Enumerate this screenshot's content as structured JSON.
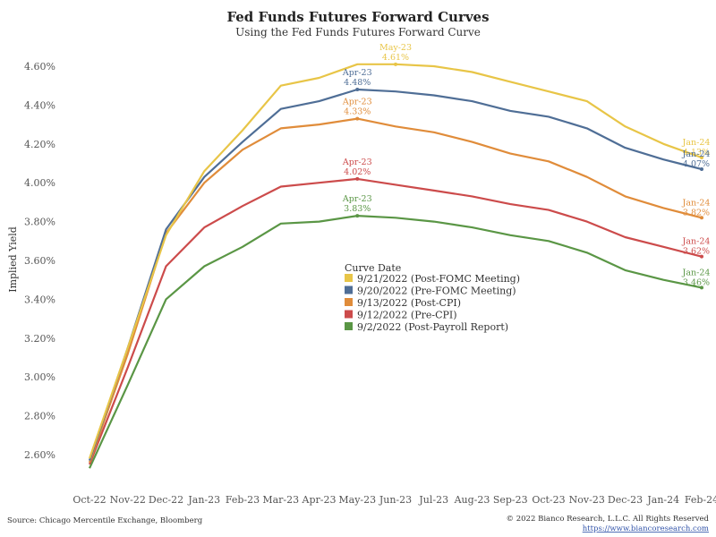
{
  "chart_data": {
    "type": "line",
    "title": "Fed Funds Futures Forward Curves",
    "subtitle": "Using the Fed Funds Futures Forward Curve",
    "ylabel": "Implied Yield",
    "xlabel": "",
    "ylim": [
      2.5,
      4.7
    ],
    "yticks": [
      "2.60%",
      "2.80%",
      "3.00%",
      "3.20%",
      "3.40%",
      "3.60%",
      "3.80%",
      "4.00%",
      "4.20%",
      "4.40%",
      "4.60%"
    ],
    "categories": [
      "Oct-22",
      "Nov-22",
      "Dec-22",
      "Jan-23",
      "Feb-23",
      "Mar-23",
      "Apr-23",
      "May-23",
      "Jun-23",
      "Jul-23",
      "Aug-23",
      "Sep-23",
      "Oct-23",
      "Nov-23",
      "Dec-23",
      "Jan-24",
      "Feb-24"
    ],
    "legend_title": "Curve Date",
    "legend_position": "center",
    "grid": false,
    "series": [
      {
        "name": "9/21/2022 (Post-FOMC Meeting)",
        "color": "#E8C547",
        "values": [
          2.58,
          3.15,
          3.73,
          4.06,
          4.27,
          4.5,
          4.54,
          4.61,
          4.61,
          4.6,
          4.57,
          4.52,
          4.47,
          4.42,
          4.29,
          4.2,
          4.13
        ],
        "annotations": [
          {
            "index": 8,
            "label": "May-23",
            "value": "4.61%"
          },
          {
            "index": 16,
            "label": "Jan-24",
            "value": "4.13%"
          }
        ]
      },
      {
        "name": "9/20/2022 (Pre-FOMC Meeting)",
        "color": "#4F6E96",
        "values": [
          2.57,
          3.15,
          3.76,
          4.03,
          4.21,
          4.38,
          4.42,
          4.48,
          4.47,
          4.45,
          4.42,
          4.37,
          4.34,
          4.28,
          4.18,
          4.12,
          4.07
        ],
        "annotations": [
          {
            "index": 7,
            "label": "Apr-23",
            "value": "4.48%"
          },
          {
            "index": 16,
            "label": "Jan-24",
            "value": "4.07%"
          }
        ]
      },
      {
        "name": "9/13/2022 (Post-CPI)",
        "color": "#E08C3A",
        "values": [
          2.56,
          3.12,
          3.74,
          4.0,
          4.17,
          4.28,
          4.3,
          4.33,
          4.29,
          4.26,
          4.21,
          4.15,
          4.11,
          4.03,
          3.93,
          3.87,
          3.82
        ],
        "annotations": [
          {
            "index": 7,
            "label": "Apr-23",
            "value": "4.33%"
          },
          {
            "index": 16,
            "label": "Jan-24",
            "value": "3.82%"
          }
        ]
      },
      {
        "name": "9/12/2022 (Pre-CPI)",
        "color": "#CC4B4B",
        "values": [
          2.55,
          3.05,
          3.57,
          3.77,
          3.88,
          3.98,
          4.0,
          4.02,
          3.99,
          3.96,
          3.93,
          3.89,
          3.86,
          3.8,
          3.72,
          3.67,
          3.62
        ],
        "annotations": [
          {
            "index": 7,
            "label": "Apr-23",
            "value": "4.02%"
          },
          {
            "index": 16,
            "label": "Jan-24",
            "value": "3.62%"
          }
        ]
      },
      {
        "name": "9/2/2022 (Post-Payroll Report)",
        "color": "#5A9645",
        "values": [
          2.53,
          2.96,
          3.4,
          3.57,
          3.67,
          3.79,
          3.8,
          3.83,
          3.82,
          3.8,
          3.77,
          3.73,
          3.7,
          3.64,
          3.55,
          3.5,
          3.46
        ],
        "annotations": [
          {
            "index": 7,
            "label": "Apr-23",
            "value": "3.83%"
          },
          {
            "index": 16,
            "label": "Jan-24",
            "value": "3.46%"
          }
        ]
      }
    ]
  },
  "footer": {
    "source": "Source: Chicago Mercentile Exchange, Bloomberg",
    "copyright": "© 2022 Bianco Research, L.L.C. All Rights Reserved",
    "url": "https://www.biancoresearch.com"
  }
}
